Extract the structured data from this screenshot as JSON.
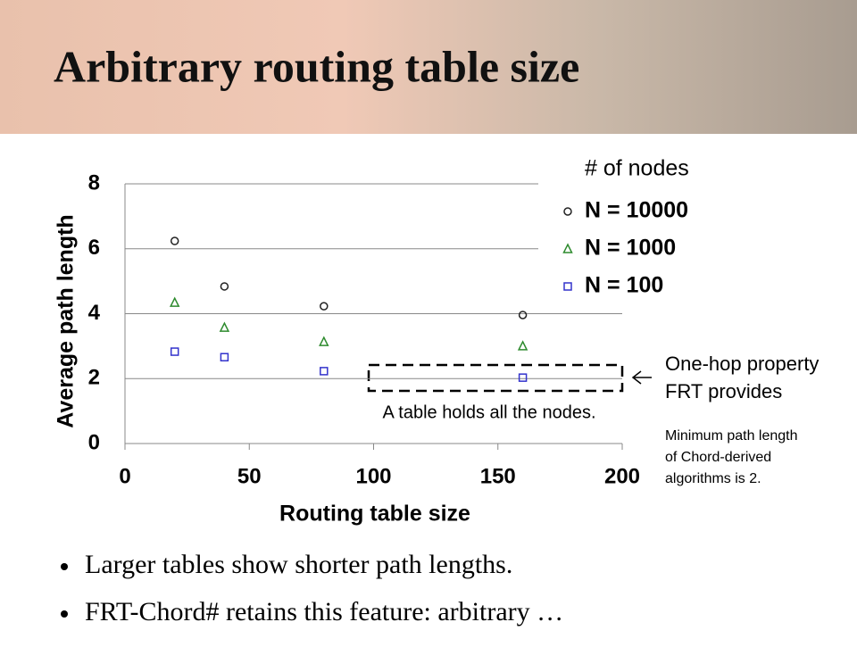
{
  "slide": {
    "title": "Arbitrary routing table size",
    "bullets": [
      "Larger tables show shorter path lengths.",
      "FRT-Chord# retains this feature: arbitrary …"
    ]
  },
  "chart_data": {
    "type": "scatter",
    "x_label": "Routing table size",
    "y_label": "Average path length",
    "legend_title": "# of nodes",
    "series": [
      {
        "name": "N = 10000",
        "color": "#222222",
        "marker": "circle",
        "x": [
          20,
          40,
          80,
          160
        ],
        "values": [
          6.24,
          4.84,
          4.23,
          3.96
        ]
      },
      {
        "name": "N = 1000",
        "color": "#2e8b2e",
        "marker": "triangle",
        "x": [
          20,
          40,
          80,
          160
        ],
        "values": [
          4.34,
          3.57,
          3.13,
          3.0
        ]
      },
      {
        "name": "N = 100",
        "color": "#3333cc",
        "marker": "square",
        "x": [
          20,
          40,
          80,
          160
        ],
        "values": [
          2.83,
          2.66,
          2.23,
          2.03
        ]
      }
    ],
    "xlim": [
      0,
      200
    ],
    "xticks": [
      0,
      50,
      100,
      150,
      200
    ],
    "ylim": [
      0,
      8
    ],
    "yticks": [
      0,
      2,
      4,
      6,
      8
    ],
    "grid": true,
    "annotations": [
      "A table holds all the nodes.",
      "One-hop property",
      "FRT provides",
      "Minimum path length",
      "of Chord-derived",
      "algorithms is 2."
    ]
  }
}
